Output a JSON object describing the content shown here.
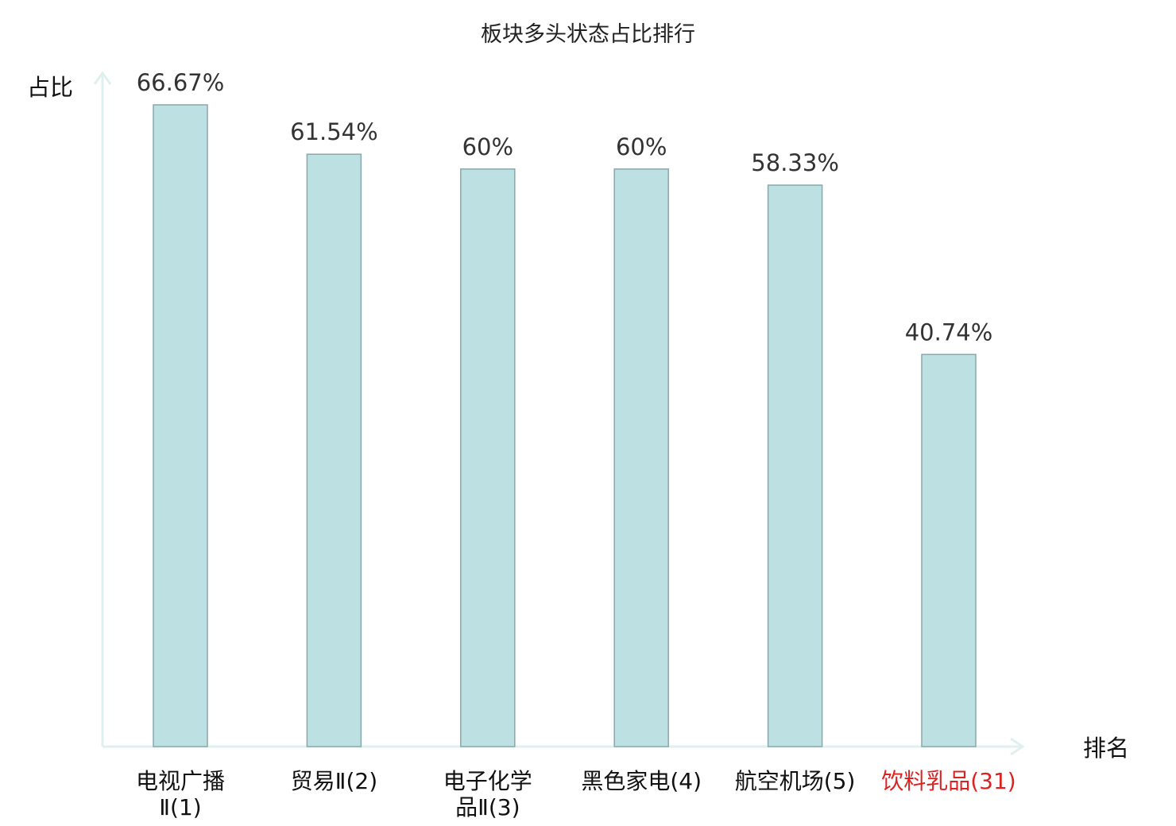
{
  "chart_data": {
    "type": "bar",
    "title": "板块多头状态占比排行",
    "ylabel": "占比",
    "xlabel": "排名",
    "ylim": [
      0,
      70
    ],
    "grid": false,
    "legend": "none",
    "categories": [
      {
        "lines": [
          "电视广播",
          "Ⅱ(1)"
        ],
        "highlight": false
      },
      {
        "lines": [
          "贸易Ⅱ(2)"
        ],
        "highlight": false
      },
      {
        "lines": [
          "电子化学",
          "品Ⅱ(3)"
        ],
        "highlight": false
      },
      {
        "lines": [
          "黑色家电(4)"
        ],
        "highlight": false
      },
      {
        "lines": [
          "航空机场(5)"
        ],
        "highlight": false
      },
      {
        "lines": [
          "饮料乳品(31)"
        ],
        "highlight": true
      }
    ],
    "values": [
      66.67,
      61.54,
      60,
      60,
      58.33,
      40.74
    ],
    "value_labels": [
      "66.67%",
      "61.54%",
      "60%",
      "60%",
      "58.33%",
      "40.74%"
    ],
    "colors": {
      "bar_fill": "#bde0e3",
      "bar_stroke": "#8aa8ab",
      "axis": "#dff1ee",
      "highlight_text": "#dd2222",
      "normal_text": "#111111"
    }
  }
}
